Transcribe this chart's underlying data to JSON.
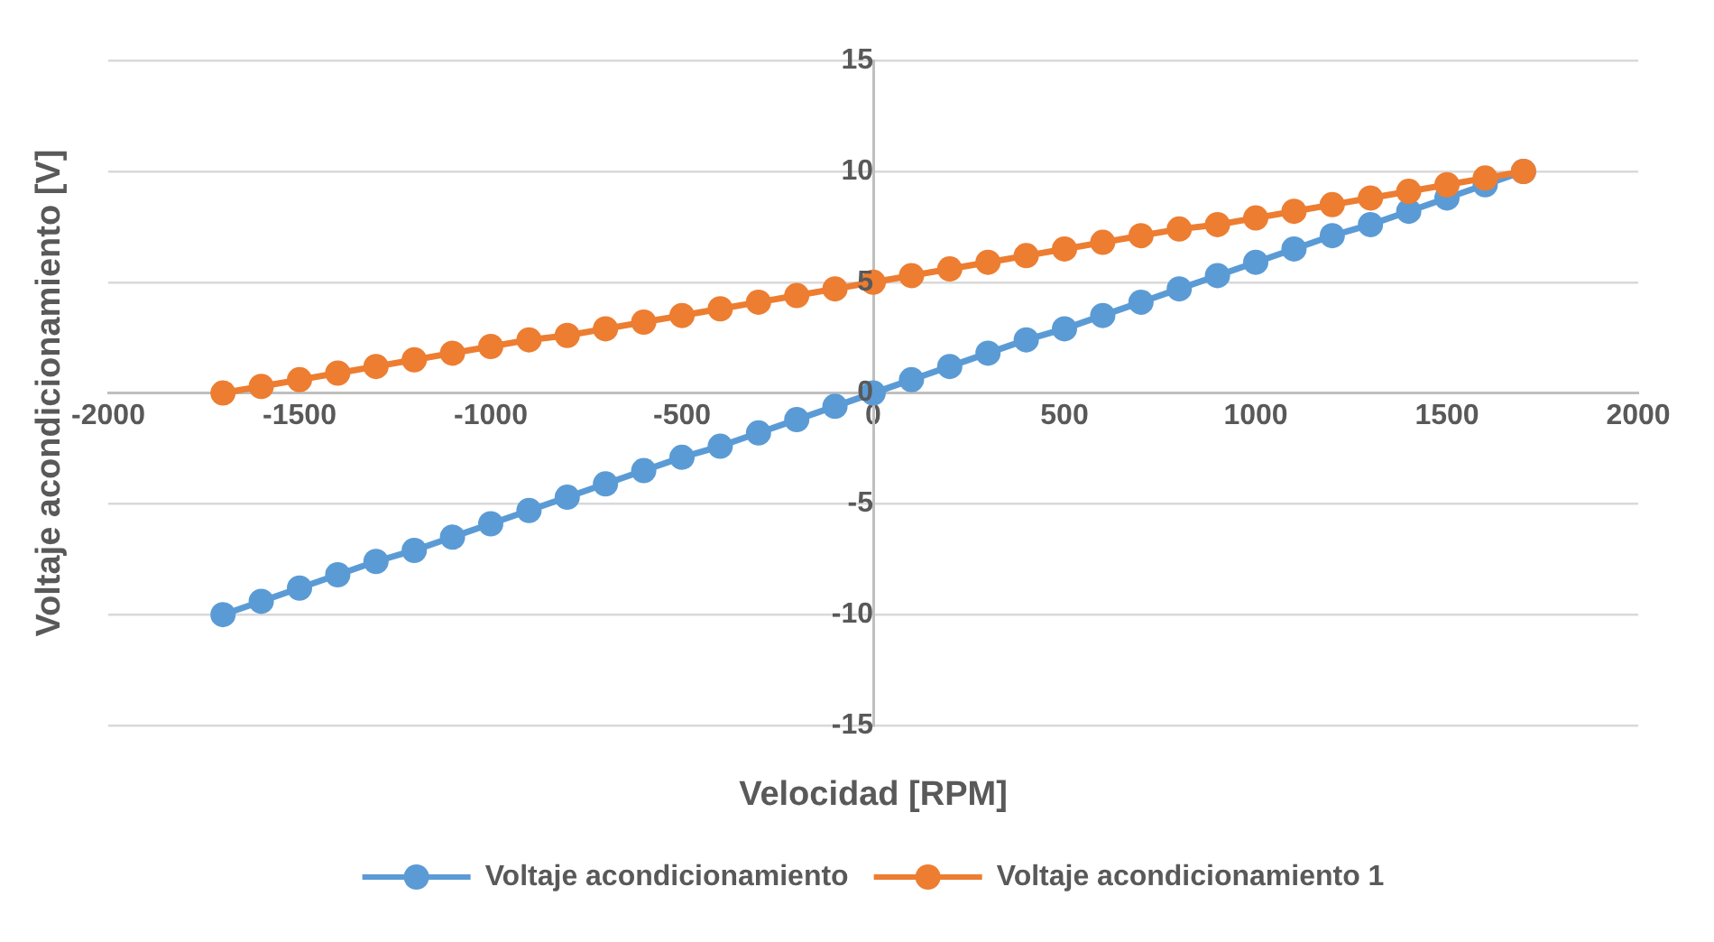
{
  "chart_data": {
    "type": "line",
    "xlabel": "Velocidad [RPM]",
    "ylabel": "Voltaje acondicionamiento [V]",
    "x": [
      -1700,
      -1600,
      -1500,
      -1400,
      -1300,
      -1200,
      -1100,
      -1000,
      -900,
      -800,
      -700,
      -600,
      -500,
      -400,
      -300,
      -200,
      -100,
      0,
      100,
      200,
      300,
      400,
      500,
      600,
      700,
      800,
      900,
      1000,
      1100,
      1200,
      1300,
      1400,
      1500,
      1600,
      1700
    ],
    "series": [
      {
        "name": "Voltaje acondicionamiento",
        "color": "#5b9bd5",
        "values": [
          -10,
          -9.4,
          -8.8,
          -8.2,
          -7.6,
          -7.1,
          -6.5,
          -5.9,
          -5.3,
          -4.7,
          -4.1,
          -3.5,
          -2.9,
          -2.4,
          -1.8,
          -1.2,
          -0.6,
          0,
          0.6,
          1.2,
          1.8,
          2.4,
          2.9,
          3.5,
          4.1,
          4.7,
          5.3,
          5.9,
          6.5,
          7.1,
          7.6,
          8.2,
          8.8,
          9.4,
          10
        ]
      },
      {
        "name": "Voltaje acondicionamiento 1",
        "color": "#ed7d31",
        "values": [
          0,
          0.3,
          0.6,
          0.9,
          1.2,
          1.5,
          1.8,
          2.1,
          2.4,
          2.6,
          2.9,
          3.2,
          3.5,
          3.8,
          4.1,
          4.4,
          4.7,
          5,
          5.3,
          5.6,
          5.9,
          6.2,
          6.5,
          6.8,
          7.1,
          7.4,
          7.6,
          7.9,
          8.2,
          8.5,
          8.8,
          9.1,
          9.4,
          9.7,
          10
        ]
      }
    ],
    "xlim": [
      -2000,
      2000
    ],
    "xticks": [
      -2000,
      -1500,
      -1000,
      -500,
      0,
      500,
      1000,
      1500,
      2000
    ],
    "ylim": [
      -15,
      15
    ],
    "yticks": [
      -15,
      -10,
      -5,
      0,
      5,
      10,
      15
    ],
    "grid": "y",
    "legend": "bottom",
    "marker": "circle",
    "line_style": "solid"
  }
}
